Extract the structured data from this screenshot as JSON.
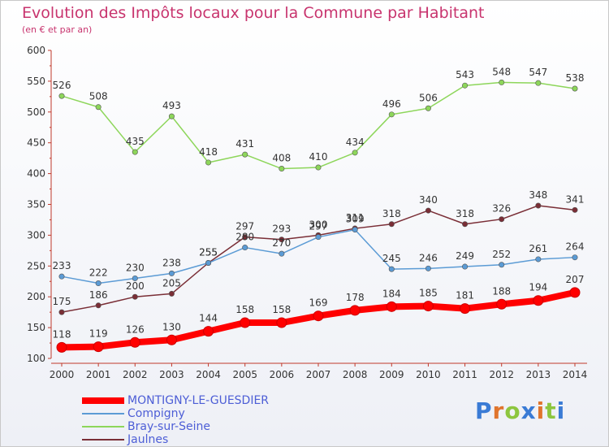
{
  "header": {
    "title": "Evolution des Impôts locaux pour la Commune par Habitant",
    "subtitle": "(en € et par an)"
  },
  "logo": {
    "text": "Proxiti",
    "colors": [
      "#3a7bd5",
      "#e0752d",
      "#8dc63f",
      "#3a7bd5",
      "#e0752d",
      "#8dc63f",
      "#3a7bd5"
    ]
  },
  "chart_data": {
    "type": "line",
    "title": "Evolution des Impôts locaux pour la Commune par Habitant",
    "subtitle": "(en € et par an)",
    "xlabel": "",
    "ylabel": "",
    "x": [
      "2000",
      "2001",
      "2002",
      "2003",
      "2004",
      "2005",
      "2006",
      "2007",
      "2008",
      "2009",
      "2010",
      "2011",
      "2012",
      "2013",
      "2014"
    ],
    "ylim": [
      100,
      600
    ],
    "yticks": [
      100,
      150,
      200,
      250,
      300,
      350,
      400,
      450,
      500,
      550,
      600
    ],
    "grid": false,
    "legend_position": "bottom-left",
    "series": [
      {
        "name": "MONTIGNY-LE-GUESDIER",
        "color": "#ff0000",
        "values": [
          118,
          119,
          126,
          130,
          144,
          158,
          158,
          169,
          178,
          184,
          185,
          181,
          188,
          194,
          207
        ]
      },
      {
        "name": "Compigny",
        "color": "#5b9bd5",
        "values": [
          233,
          222,
          230,
          238,
          255,
          280,
          270,
          297,
          309,
          245,
          246,
          249,
          252,
          261,
          264
        ]
      },
      {
        "name": "Bray-sur-Seine",
        "color": "#8dd65a",
        "values": [
          526,
          508,
          435,
          493,
          418,
          431,
          408,
          410,
          434,
          496,
          506,
          543,
          548,
          547,
          538
        ]
      },
      {
        "name": "Jaulnes",
        "color": "#7a2e36",
        "values": [
          175,
          186,
          200,
          205,
          255,
          297,
          293,
          300,
          311,
          318,
          340,
          318,
          326,
          348,
          341
        ]
      }
    ]
  }
}
